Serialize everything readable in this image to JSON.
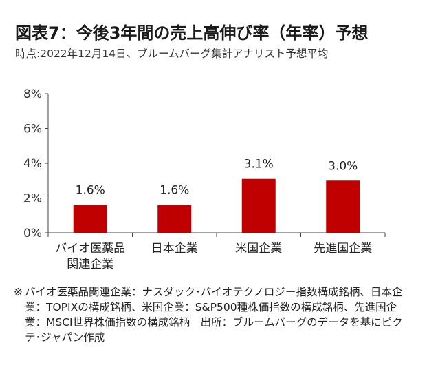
{
  "title": "図表7：今後3年間の売上高伸び率（年率）予想",
  "subtitle": "時点:2022年12月14日、ブルームバーグ集計アナリスト予想平均",
  "note_mark": "※",
  "note": "バイオ医薬品関連企業：ナスダック･バイオテクノロジー指数構成銘柄、日本企業：TOPIXの構成銘柄、米国企業：S&P500種株価指数の構成銘柄、先進国企業：MSCI世界株価指数の構成銘柄　出所：ブルームバーグのデータを基にピクテ･ジャパン作成",
  "colors": {
    "bar": "#c00000",
    "axis": "#444444",
    "label_bg": "#ffffff"
  },
  "chart_data": {
    "type": "bar",
    "categories": [
      [
        "バイオ医薬品",
        "関連企業"
      ],
      [
        "日本企業"
      ],
      [
        "米国企業"
      ],
      [
        "先進国企業"
      ]
    ],
    "values": [
      1.6,
      1.6,
      3.1,
      3.0
    ],
    "data_labels": [
      "1.6%",
      "1.6%",
      "3.1%",
      "3.0%"
    ],
    "yticks": [
      0,
      2,
      4,
      6,
      8
    ],
    "ytick_labels": [
      "0%",
      "2%",
      "4%",
      "6%",
      "8%"
    ],
    "ylim": [
      0,
      8
    ],
    "grid": false,
    "legend": "none"
  }
}
